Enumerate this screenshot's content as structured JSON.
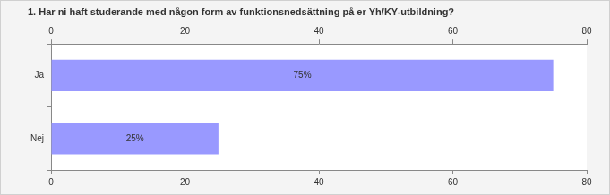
{
  "chart_data": {
    "type": "bar",
    "orientation": "horizontal",
    "title": "1. Har ni haft studerande med någon form av funktionsnedsättning på er Yh/KY-utbildning?",
    "categories": [
      "Ja",
      "Nej"
    ],
    "values": [
      75,
      25
    ],
    "value_labels": [
      "75%",
      "25%"
    ],
    "color": "#9999ff",
    "xlim": [
      0,
      80
    ],
    "xticks": [
      0,
      20,
      40,
      60,
      80
    ],
    "grid": false,
    "data_labels": true
  }
}
